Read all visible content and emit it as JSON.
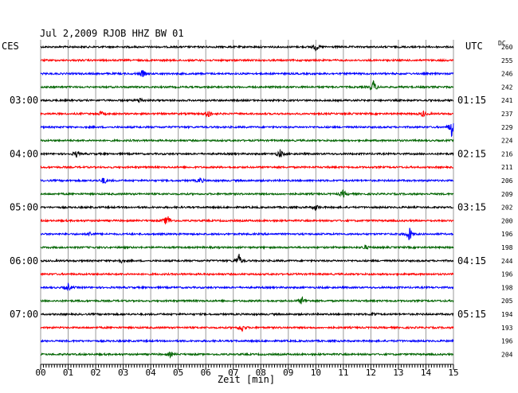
{
  "chart_data": {
    "type": "line",
    "title": "Jul 2,2009   RJOB HHZ BW 01",
    "left_timezone": "CES",
    "right_timezone": "UTC",
    "dc_header": "DC",
    "xlabel": "Zeit [min]",
    "xlim": [
      0,
      15
    ],
    "x_ticks": [
      "00",
      "01",
      "02",
      "03",
      "04",
      "05",
      "06",
      "07",
      "08",
      "09",
      "10",
      "11",
      "12",
      "13",
      "14",
      "15"
    ],
    "grid": true,
    "trace_colors": [
      "#000000",
      "#ff0000",
      "#0000ff",
      "#006400"
    ],
    "left_hour_labels": [
      {
        "trace": 4,
        "label": "03:00"
      },
      {
        "trace": 8,
        "label": "04:00"
      },
      {
        "trace": 12,
        "label": "05:00"
      },
      {
        "trace": 16,
        "label": "06:00"
      },
      {
        "trace": 20,
        "label": "07:00"
      }
    ],
    "right_hour_labels": [
      {
        "trace": 4,
        "label": "01:15"
      },
      {
        "trace": 8,
        "label": "02:15"
      },
      {
        "trace": 12,
        "label": "03:15"
      },
      {
        "trace": 16,
        "label": "04:15"
      },
      {
        "trace": 20,
        "label": "05:15"
      }
    ],
    "dc_offsets": [
      260,
      255,
      246,
      242,
      241,
      237,
      229,
      224,
      216,
      211,
      206,
      209,
      202,
      200,
      196,
      198,
      244,
      196,
      198,
      205,
      194,
      193,
      196,
      204
    ],
    "events": [
      {
        "trace": 0,
        "minute": 10.0,
        "amplitude": 5
      },
      {
        "trace": 2,
        "minute": 3.7,
        "amplitude": 5
      },
      {
        "trace": 3,
        "minute": 12.1,
        "amplitude": 9
      },
      {
        "trace": 4,
        "minute": 3.6,
        "amplitude": 4
      },
      {
        "trace": 5,
        "minute": 2.2,
        "amplitude": 3
      },
      {
        "trace": 5,
        "minute": 6.1,
        "amplitude": 6
      },
      {
        "trace": 5,
        "minute": 13.9,
        "amplitude": 4
      },
      {
        "trace": 6,
        "minute": 14.95,
        "amplitude": 14
      },
      {
        "trace": 8,
        "minute": 1.3,
        "amplitude": 4
      },
      {
        "trace": 8,
        "minute": 8.7,
        "amplitude": 6
      },
      {
        "trace": 10,
        "minute": 2.3,
        "amplitude": 5
      },
      {
        "trace": 10,
        "minute": 5.8,
        "amplitude": 4
      },
      {
        "trace": 11,
        "minute": 11.0,
        "amplitude": 5
      },
      {
        "trace": 12,
        "minute": 10.0,
        "amplitude": 4
      },
      {
        "trace": 13,
        "minute": 4.6,
        "amplitude": 9
      },
      {
        "trace": 14,
        "minute": 13.4,
        "amplitude": 10
      },
      {
        "trace": 14,
        "minute": 1.8,
        "amplitude": 3
      },
      {
        "trace": 15,
        "minute": 11.8,
        "amplitude": 3
      },
      {
        "trace": 16,
        "minute": 7.2,
        "amplitude": 9
      },
      {
        "trace": 16,
        "minute": 2.9,
        "amplitude": 3
      },
      {
        "trace": 18,
        "minute": 1.0,
        "amplitude": 5
      },
      {
        "trace": 19,
        "minute": 9.5,
        "amplitude": 5
      },
      {
        "trace": 20,
        "minute": 12.1,
        "amplitude": 3
      },
      {
        "trace": 21,
        "minute": 7.3,
        "amplitude": 6
      },
      {
        "trace": 23,
        "minute": 4.7,
        "amplitude": 3
      }
    ]
  }
}
